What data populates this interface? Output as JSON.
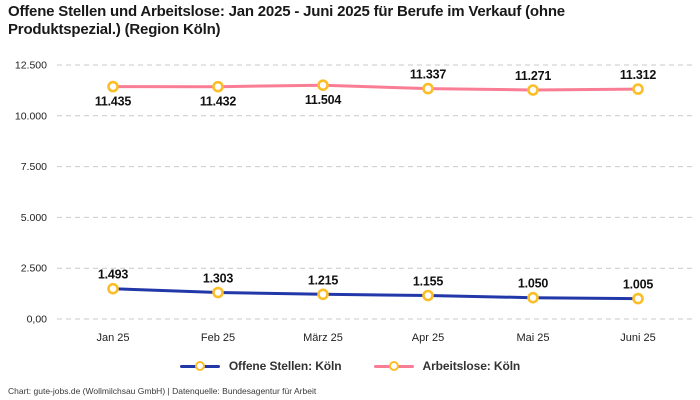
{
  "title": "Offene Stellen und Arbeitslose: Jan 2025 - Juni 2025 für Berufe im Verkauf (ohne Produktspezial.) (Region Köln)",
  "footer": "Chart: gute-jobs.de (Wollmilchsau GmbH) | Datenquelle: Bundesagentur für Arbeit",
  "chart_data": {
    "type": "line",
    "categories": [
      "Jan 25",
      "Feb 25",
      "März 25",
      "Apr 25",
      "Mai 25",
      "Juni 25"
    ],
    "series": [
      {
        "name": "Offene Stellen: Köln",
        "color": "#2338a8",
        "values": [
          1493,
          1303,
          1215,
          1155,
          1050,
          1005
        ],
        "labels": [
          "1.493",
          "1.303",
          "1.215",
          "1.155",
          "1.050",
          "1.005"
        ],
        "label_positions": [
          "above",
          "above",
          "above",
          "above",
          "above",
          "above"
        ]
      },
      {
        "name": "Arbeitslose: Köln",
        "color": "#f97e95",
        "values": [
          11435,
          11432,
          11504,
          11337,
          11271,
          11312
        ],
        "labels": [
          "11.435",
          "11.432",
          "11.504",
          "11.337",
          "11.271",
          "11.312"
        ],
        "label_positions": [
          "below",
          "below",
          "below",
          "above",
          "above",
          "above"
        ]
      }
    ],
    "y_ticks": [
      {
        "value": 0,
        "label": "0,00"
      },
      {
        "value": 2500,
        "label": "2.500"
      },
      {
        "value": 5000,
        "label": "5.000"
      },
      {
        "value": 7500,
        "label": "7.500"
      },
      {
        "value": 10000,
        "label": "10.000"
      },
      {
        "value": 12500,
        "label": "12.500"
      }
    ],
    "ylim": [
      0,
      12500
    ],
    "xlabel": "",
    "ylabel": "",
    "grid": "horizontal-dashed",
    "legend_position": "bottom",
    "marker_color": "#fbbe29",
    "grid_color": "#c9c9c9"
  }
}
